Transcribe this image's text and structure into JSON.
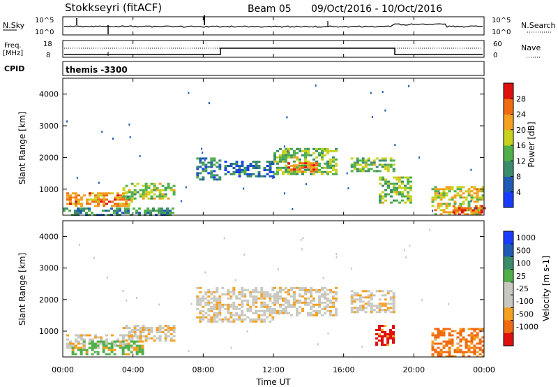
{
  "header": {
    "station": "Stokkseyri (fitACF)",
    "beam": "Beam 05",
    "date_range": "09/Oct/2016 - 10/Oct/2016"
  },
  "noise_panel": {
    "left_label": "N.Sky",
    "right_label": "N.Search",
    "left_ticks": [
      "10^5",
      "10^0"
    ],
    "right_ticks": [
      "10^5",
      "10^0"
    ]
  },
  "freq_panel": {
    "left_label_1": "Freq.",
    "left_label_2": "[MHz]",
    "right_label": "Nave",
    "left_ticks": [
      "18",
      "8"
    ],
    "right_ticks": [
      "60",
      "0"
    ]
  },
  "cpid_panel": {
    "label": "CPID",
    "value": "themis -3300"
  },
  "colors": {
    "power": [
      "#1a3cff",
      "#1f5ab4",
      "#3a8c6a",
      "#4fb04a",
      "#c8d21e",
      "#f4a020",
      "#f06a10",
      "#e01010"
    ],
    "velocity": [
      "#e01010",
      "#f06a10",
      "#f4a020",
      "#c8c8c0",
      "#c8c8c0",
      "#4fb04a",
      "#3a8c6a",
      "#1f5ab4",
      "#1a3cff"
    ],
    "ground_scatter": "#c8c8c0"
  },
  "chart_data": [
    {
      "type": "heatmap",
      "parameter": "Power",
      "ylabel": "Slant Range [km]",
      "ylim": [
        180,
        4500
      ],
      "yticks": [
        1000,
        2000,
        3000,
        4000
      ],
      "xlim": [
        0,
        24
      ],
      "xticks": [
        "00:00",
        "04:00",
        "08:00",
        "12:00",
        "16:00",
        "20:00",
        "00:00"
      ],
      "colorbar": {
        "label": "Power [dB]",
        "ticks": [
          "4",
          "8",
          "12",
          "16",
          "20",
          "24",
          "28"
        ],
        "range": [
          0,
          30
        ]
      },
      "regions": [
        {
          "t0": 0.2,
          "t1": 4.0,
          "r0": 450,
          "r1": 900,
          "level": 22
        },
        {
          "t0": 3.4,
          "t1": 6.3,
          "r0": 700,
          "r1": 1200,
          "level": 16
        },
        {
          "t0": 0.0,
          "t1": 6.2,
          "r0": 200,
          "r1": 420,
          "level": 10
        },
        {
          "t0": 7.6,
          "t1": 9.0,
          "r0": 1300,
          "r1": 2000,
          "level": 8
        },
        {
          "t0": 9.2,
          "t1": 12.0,
          "r0": 1400,
          "r1": 1900,
          "level": 7
        },
        {
          "t0": 12.0,
          "t1": 15.6,
          "r0": 1500,
          "r1": 2300,
          "level": 14
        },
        {
          "t0": 12.8,
          "t1": 14.6,
          "r0": 1550,
          "r1": 1850,
          "level": 24
        },
        {
          "t0": 16.4,
          "t1": 18.8,
          "r0": 1600,
          "r1": 2000,
          "level": 14
        },
        {
          "t0": 18.0,
          "t1": 19.8,
          "r0": 600,
          "r1": 1400,
          "level": 14
        },
        {
          "t0": 21.0,
          "t1": 24.0,
          "r0": 200,
          "r1": 1100,
          "level": 18
        },
        {
          "t0": 22.2,
          "t1": 24.0,
          "r0": 200,
          "r1": 500,
          "level": 24
        }
      ]
    },
    {
      "type": "heatmap",
      "parameter": "Velocity",
      "ylabel": "Slant Range [km]",
      "ylim": [
        180,
        4500
      ],
      "yticks": [
        1000,
        2000,
        3000,
        4000
      ],
      "xlim": [
        0,
        24
      ],
      "xlabel": "Time UT",
      "xticks": [
        "00:00",
        "04:00",
        "08:00",
        "12:00",
        "16:00",
        "20:00",
        "00:00"
      ],
      "colorbar": {
        "label": "Velocity [m s-1]",
        "ticks": [
          "1000",
          "500",
          "100",
          "25",
          "-25",
          "-100",
          "-500",
          "-1000"
        ]
      },
      "regions": [
        {
          "t0": 0.2,
          "t1": 4.0,
          "r0": 450,
          "r1": 900,
          "level": 25
        },
        {
          "t0": 3.4,
          "t1": 6.3,
          "r0": 700,
          "r1": 1200,
          "level": 25
        },
        {
          "t0": 0.5,
          "t1": 4.5,
          "r0": 300,
          "r1": 700,
          "level": 100
        },
        {
          "t0": 7.6,
          "t1": 12.0,
          "r0": 1300,
          "r1": 2400,
          "level": 0
        },
        {
          "t0": 12.0,
          "t1": 15.6,
          "r0": 1500,
          "r1": 2400,
          "level": 0
        },
        {
          "t0": 16.4,
          "t1": 18.8,
          "r0": 1600,
          "r1": 2300,
          "level": 0
        },
        {
          "t0": 17.8,
          "t1": 18.8,
          "r0": 600,
          "r1": 1200,
          "level": -500
        },
        {
          "t0": 21.0,
          "t1": 24.0,
          "r0": 200,
          "r1": 1100,
          "level": -100
        }
      ]
    }
  ]
}
